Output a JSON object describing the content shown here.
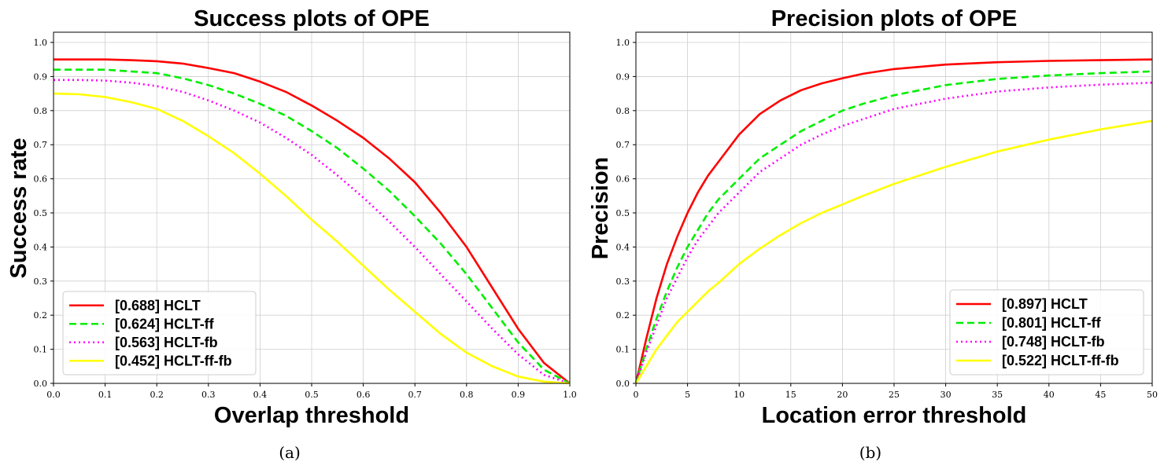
{
  "chart_data": [
    {
      "type": "line",
      "title": "Success plots of OPE",
      "xlabel": "Overlap threshold",
      "ylabel": "Success rate",
      "caption": "(a)",
      "xlim": [
        0,
        1
      ],
      "ylim": [
        0,
        1.03
      ],
      "xticks": [
        "0.0",
        "0.1",
        "0.2",
        "0.3",
        "0.4",
        "0.5",
        "0.6",
        "0.7",
        "0.8",
        "0.9",
        "1.0"
      ],
      "yticks": [
        "0.0",
        "0.1",
        "0.2",
        "0.3",
        "0.4",
        "0.5",
        "0.6",
        "0.7",
        "0.8",
        "0.9",
        "1.0"
      ],
      "grid": true,
      "legend_position": "lower-left",
      "x": [
        0.0,
        0.05,
        0.1,
        0.15,
        0.2,
        0.25,
        0.3,
        0.35,
        0.4,
        0.45,
        0.5,
        0.55,
        0.6,
        0.65,
        0.7,
        0.75,
        0.8,
        0.85,
        0.9,
        0.95,
        1.0
      ],
      "series": [
        {
          "name": "[0.688] HCLT",
          "color": "#ff0000",
          "style": "solid",
          "values": [
            0.95,
            0.95,
            0.95,
            0.948,
            0.945,
            0.938,
            0.925,
            0.91,
            0.885,
            0.855,
            0.815,
            0.77,
            0.72,
            0.66,
            0.59,
            0.5,
            0.4,
            0.28,
            0.16,
            0.06,
            0.0
          ]
        },
        {
          "name": "[0.624] HCLT-ff",
          "color": "#00ee00",
          "style": "dashed",
          "values": [
            0.92,
            0.92,
            0.92,
            0.915,
            0.91,
            0.895,
            0.875,
            0.85,
            0.82,
            0.785,
            0.74,
            0.69,
            0.63,
            0.565,
            0.49,
            0.41,
            0.32,
            0.22,
            0.12,
            0.04,
            0.0
          ]
        },
        {
          "name": "[0.563] HCLT-fb",
          "color": "#ff00ff",
          "style": "dotted",
          "values": [
            0.89,
            0.89,
            0.888,
            0.882,
            0.872,
            0.855,
            0.83,
            0.8,
            0.765,
            0.72,
            0.67,
            0.61,
            0.545,
            0.475,
            0.4,
            0.32,
            0.24,
            0.16,
            0.085,
            0.025,
            0.0
          ]
        },
        {
          "name": "[0.452] HCLT-ff-fb",
          "color": "#ffff00",
          "style": "solid",
          "values": [
            0.85,
            0.848,
            0.84,
            0.825,
            0.805,
            0.77,
            0.725,
            0.675,
            0.615,
            0.55,
            0.48,
            0.415,
            0.345,
            0.275,
            0.21,
            0.145,
            0.09,
            0.05,
            0.02,
            0.005,
            0.0
          ]
        }
      ]
    },
    {
      "type": "line",
      "title": "Precision plots of OPE",
      "xlabel": "Location error threshold",
      "ylabel": "Precision",
      "caption": "(b)",
      "xlim": [
        0,
        50
      ],
      "ylim": [
        0,
        1.03
      ],
      "xticks": [
        "0",
        "5",
        "10",
        "15",
        "20",
        "25",
        "30",
        "35",
        "40",
        "45",
        "50"
      ],
      "yticks": [
        "0.0",
        "0.1",
        "0.2",
        "0.3",
        "0.4",
        "0.5",
        "0.6",
        "0.7",
        "0.8",
        "0.9",
        "1.0"
      ],
      "grid": true,
      "legend_position": "lower-right",
      "x": [
        0,
        1,
        2,
        3,
        4,
        5,
        6,
        7,
        8,
        10,
        12,
        14,
        16,
        18,
        20,
        22,
        25,
        30,
        35,
        40,
        45,
        50
      ],
      "series": [
        {
          "name": "[0.897] HCLT",
          "color": "#ff0000",
          "style": "solid",
          "values": [
            0.0,
            0.13,
            0.25,
            0.35,
            0.43,
            0.5,
            0.56,
            0.61,
            0.65,
            0.73,
            0.79,
            0.83,
            0.86,
            0.88,
            0.895,
            0.908,
            0.922,
            0.935,
            0.942,
            0.946,
            0.948,
            0.95
          ]
        },
        {
          "name": "[0.801] HCLT-ff",
          "color": "#00ee00",
          "style": "dashed",
          "values": [
            0.0,
            0.1,
            0.19,
            0.27,
            0.34,
            0.4,
            0.45,
            0.5,
            0.54,
            0.6,
            0.66,
            0.7,
            0.74,
            0.77,
            0.8,
            0.82,
            0.845,
            0.875,
            0.893,
            0.903,
            0.91,
            0.915
          ]
        },
        {
          "name": "[0.748] HCLT-fb",
          "color": "#ff00ff",
          "style": "dotted",
          "values": [
            0.0,
            0.09,
            0.17,
            0.25,
            0.31,
            0.37,
            0.42,
            0.46,
            0.5,
            0.56,
            0.62,
            0.66,
            0.7,
            0.73,
            0.755,
            0.775,
            0.805,
            0.835,
            0.856,
            0.868,
            0.876,
            0.882
          ]
        },
        {
          "name": "[0.522] HCLT-ff-fb",
          "color": "#ffff00",
          "style": "solid",
          "values": [
            0.0,
            0.05,
            0.1,
            0.14,
            0.18,
            0.21,
            0.24,
            0.27,
            0.295,
            0.35,
            0.395,
            0.435,
            0.47,
            0.5,
            0.525,
            0.55,
            0.585,
            0.635,
            0.68,
            0.715,
            0.745,
            0.77
          ]
        }
      ]
    }
  ]
}
